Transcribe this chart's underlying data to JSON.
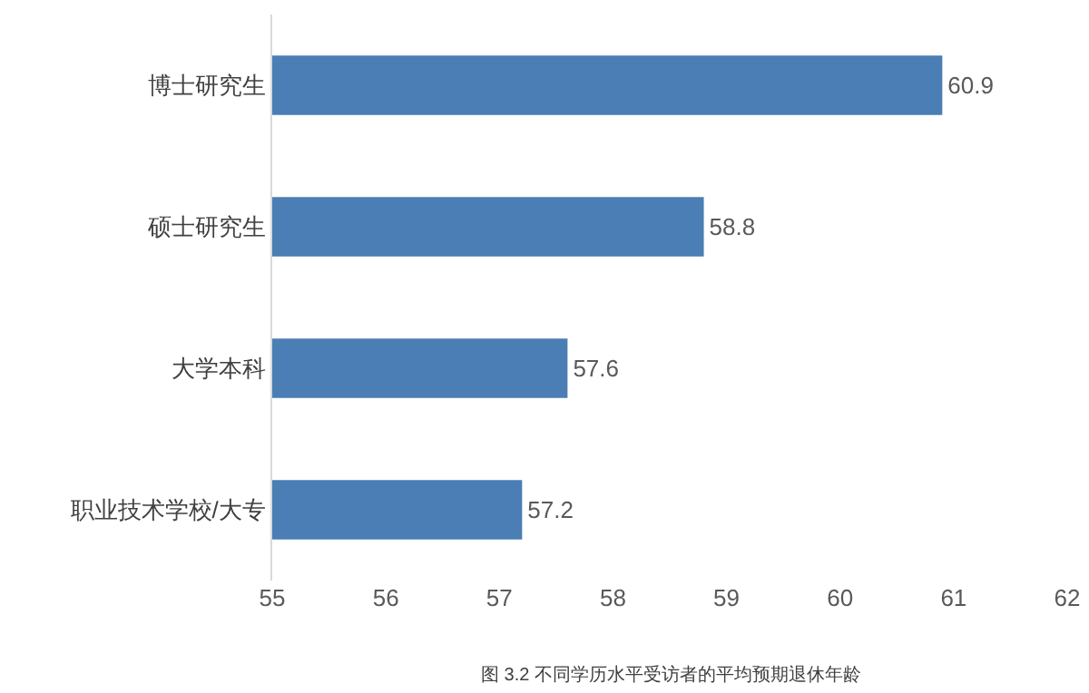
{
  "chart_data": {
    "type": "bar",
    "orientation": "horizontal",
    "categories": [
      "博士研究生",
      "硕士研究生",
      "大学本科",
      "职业技术学校/大专"
    ],
    "values": [
      60.9,
      58.8,
      57.6,
      57.2
    ],
    "color": "#4a7eb4",
    "xlim": [
      55,
      62
    ],
    "xticks": [
      55,
      56,
      57,
      58,
      59,
      60,
      61,
      62
    ],
    "data_labels": true,
    "grid": false,
    "legend": false,
    "annotations": [
      "图 3.2 不同学历水平受访者的平均预期退休年龄"
    ]
  }
}
